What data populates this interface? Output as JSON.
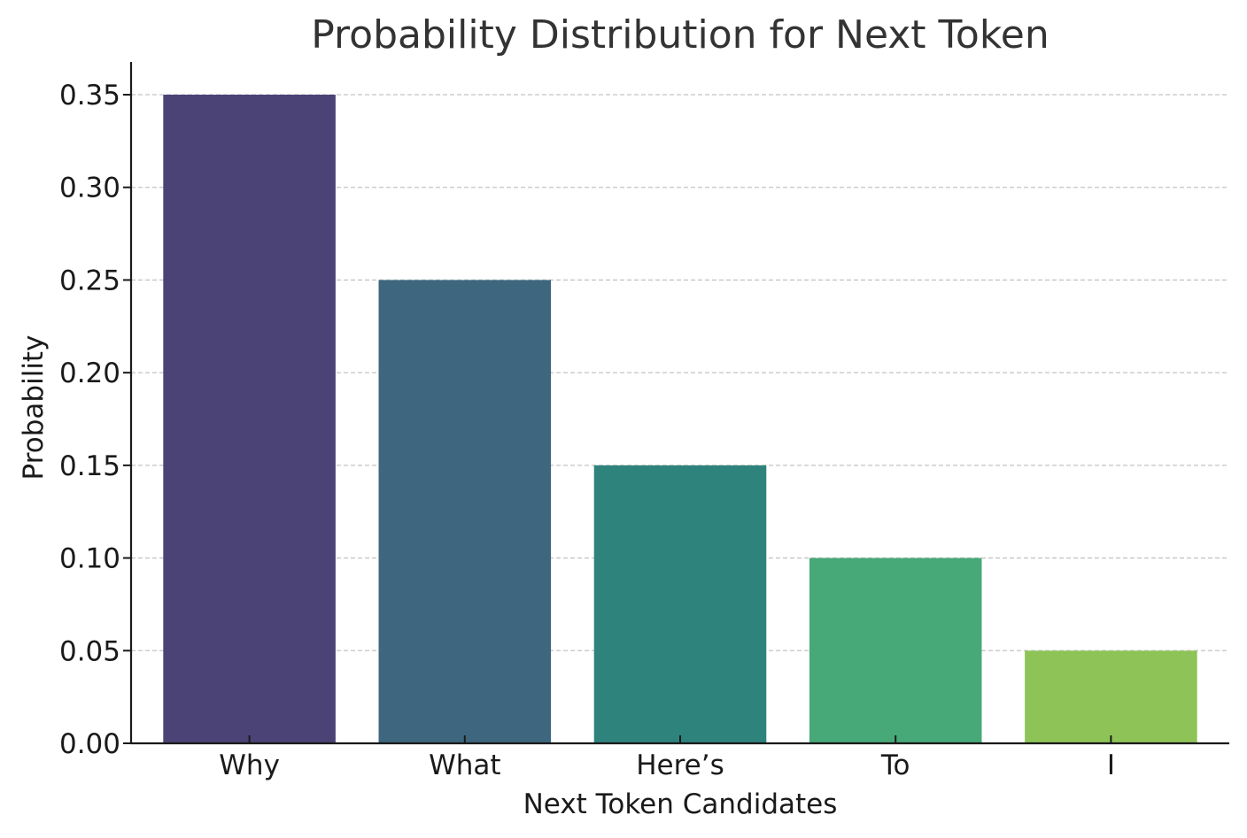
{
  "chart_data": {
    "type": "bar",
    "title": "Probability Distribution for Next Token",
    "xlabel": "Next Token Candidates",
    "ylabel": "Probability",
    "categories": [
      "Why",
      "What",
      "Here’s",
      "To",
      "I"
    ],
    "values": [
      0.35,
      0.25,
      0.15,
      0.1,
      0.05
    ],
    "colors": [
      "#4b4376",
      "#3e667f",
      "#2e837d",
      "#47a878",
      "#8ec457"
    ],
    "ylim": [
      0,
      0.35
    ],
    "yticks": [
      0.0,
      0.05,
      0.1,
      0.15,
      0.2,
      0.25,
      0.3,
      0.35
    ],
    "ytick_labels": [
      "0.00",
      "0.05",
      "0.10",
      "0.15",
      "0.20",
      "0.25",
      "0.30",
      "0.35"
    ],
    "grid": "horizontal dashed",
    "legend": "none"
  }
}
